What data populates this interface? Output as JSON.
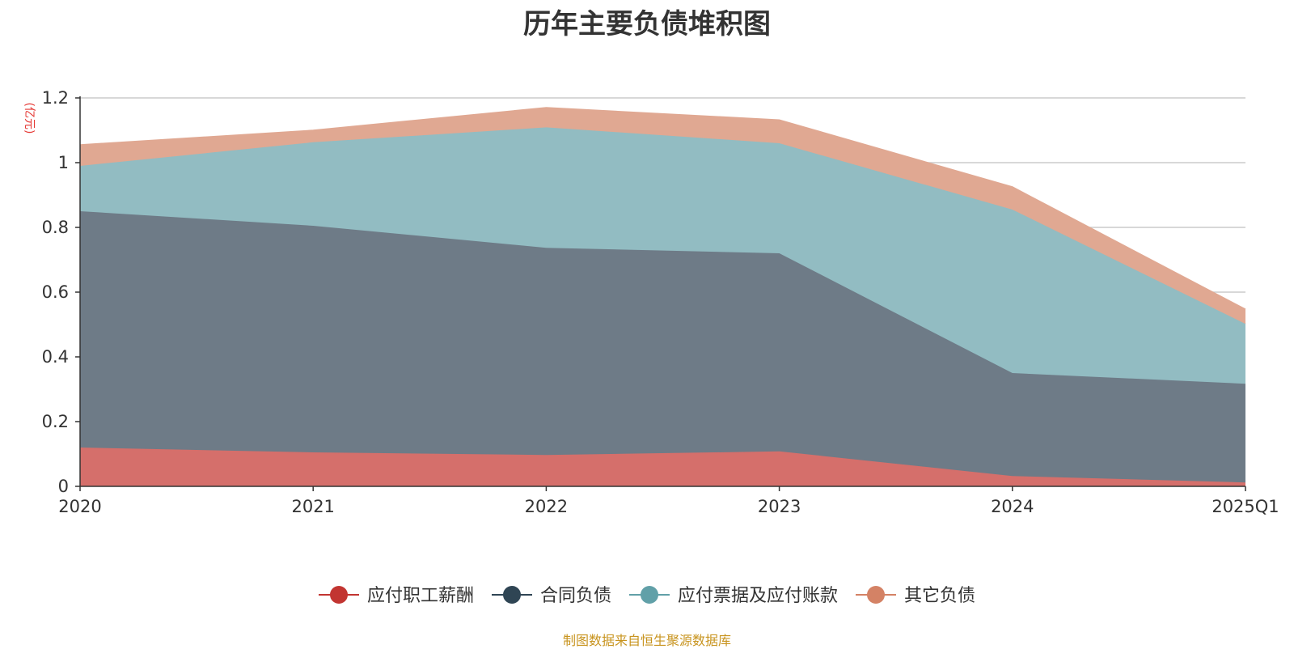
{
  "chart_data": {
    "type": "area",
    "stacked": true,
    "title": "历年主要负债堆积图",
    "unit_label": "(亿元)",
    "categories": [
      "2020",
      "2021",
      "2022",
      "2023",
      "2024",
      "2025Q1"
    ],
    "ylim": [
      0,
      1.2
    ],
    "yticks": [
      0,
      0.2,
      0.4,
      0.6,
      0.8,
      1,
      1.2
    ],
    "ytick_labels": [
      "0",
      "0.2",
      "0.4",
      "0.6",
      "0.8",
      "1",
      "1.2"
    ],
    "grid": true,
    "legend_position": "bottom",
    "series": [
      {
        "name": "应付职工薪酬",
        "values": [
          0.12,
          0.105,
          0.097,
          0.108,
          0.032,
          0.012
        ],
        "color": "#d56f6b",
        "legend_color": "#c23531"
      },
      {
        "name": "合同负债",
        "values": [
          0.73,
          0.7,
          0.64,
          0.612,
          0.318,
          0.305
        ],
        "color": "#6e7b87",
        "legend_color": "#2f4554"
      },
      {
        "name": "应付票据及应付账款",
        "values": [
          0.14,
          0.258,
          0.372,
          0.34,
          0.505,
          0.185
        ],
        "color": "#92bcc2",
        "legend_color": "#61a0a8"
      },
      {
        "name": "其它负债",
        "values": [
          0.065,
          0.037,
          0.061,
          0.072,
          0.07,
          0.045
        ],
        "color": "#e0a892",
        "legend_color": "#d48265"
      }
    ]
  },
  "source_note": "制图数据来自恒生聚源数据库"
}
